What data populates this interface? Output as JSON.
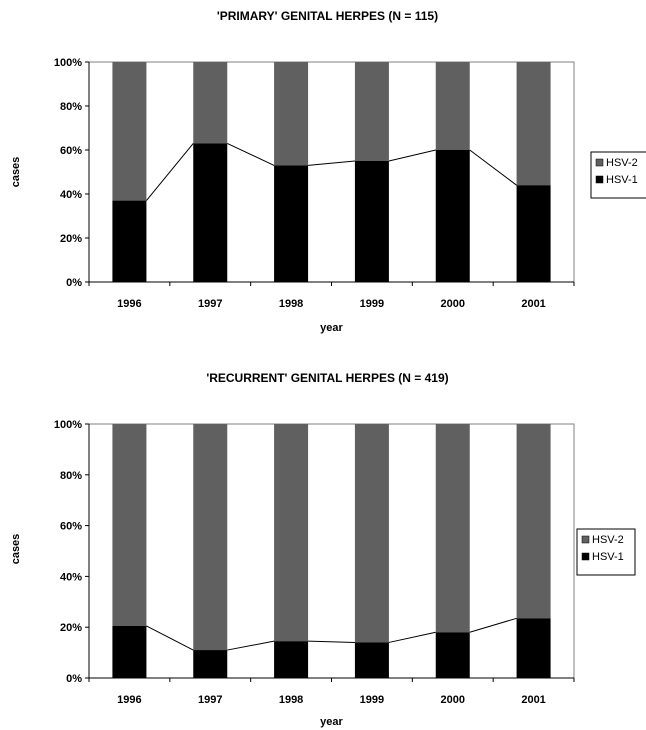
{
  "chart_data": [
    {
      "type": "bar",
      "stacked": true,
      "title": "'PRIMARY' GENITAL HERPES (N = 115)",
      "xlabel": "year",
      "ylabel": "cases",
      "categories": [
        "1996",
        "1997",
        "1998",
        "1999",
        "2000",
        "2001"
      ],
      "series": [
        {
          "name": "HSV-1",
          "color": "#000000",
          "values": [
            37,
            63,
            53,
            55,
            60,
            44
          ]
        },
        {
          "name": "HSV-2",
          "color": "#606060",
          "values": [
            63,
            37,
            47,
            45,
            40,
            56
          ]
        }
      ],
      "ylim": [
        0,
        100
      ],
      "yticks": [
        "0%",
        "20%",
        "40%",
        "60%",
        "80%",
        "100%"
      ],
      "grid": false,
      "legend_position": "right",
      "legend": [
        "HSV-2",
        "HSV-1"
      ]
    },
    {
      "type": "bar",
      "stacked": true,
      "title": "'RECURRENT' GENITAL HERPES (N = 419)",
      "xlabel": "year",
      "ylabel": "cases",
      "categories": [
        "1996",
        "1997",
        "1998",
        "1999",
        "2000",
        "2001"
      ],
      "series": [
        {
          "name": "HSV-1",
          "color": "#000000",
          "values": [
            20.5,
            11,
            14.5,
            14,
            18,
            23.5
          ]
        },
        {
          "name": "HSV-2",
          "color": "#606060",
          "values": [
            79.5,
            89,
            85.5,
            86,
            82,
            76.5
          ]
        }
      ],
      "ylim": [
        0,
        100
      ],
      "yticks": [
        "0%",
        "20%",
        "40%",
        "60%",
        "80%",
        "100%"
      ],
      "grid": false,
      "legend_position": "right",
      "legend": [
        "HSV-2",
        "HSV-1"
      ]
    }
  ]
}
